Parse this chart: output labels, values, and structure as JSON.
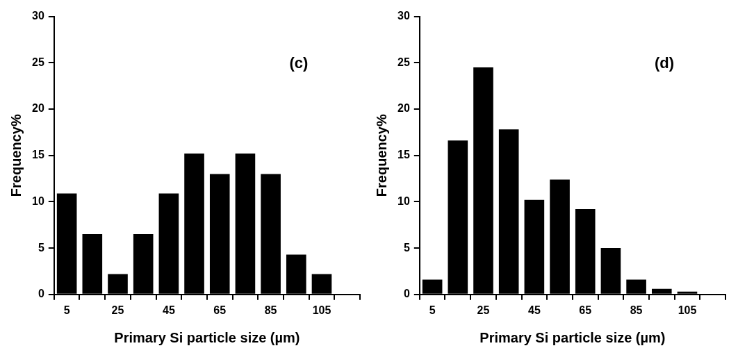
{
  "chart_data": [
    {
      "type": "bar",
      "categories": [
        "5",
        null,
        "25",
        null,
        "45",
        null,
        "65",
        null,
        "85",
        null,
        "105",
        null
      ],
      "values": [
        10.9,
        6.5,
        2.2,
        6.5,
        10.9,
        15.2,
        13.0,
        15.2,
        13.0,
        4.3,
        2.2,
        null
      ],
      "color": "#000000",
      "xlabel": "Primary Si particle size (µm)",
      "ylabel": "Frequency%",
      "ylim": [
        0,
        30
      ],
      "yticks": [
        0,
        5,
        10,
        15,
        20,
        25,
        30
      ],
      "grid": false,
      "legend": false,
      "annotations": [
        "(c)"
      ]
    },
    {
      "type": "bar",
      "categories": [
        "5",
        null,
        "25",
        null,
        "45",
        null,
        "65",
        null,
        "85",
        null,
        "105",
        null
      ],
      "values": [
        1.6,
        16.6,
        24.5,
        17.8,
        10.2,
        12.4,
        9.2,
        5.0,
        1.6,
        0.6,
        0.3,
        null
      ],
      "color": "#000000",
      "xlabel": "Primary Si particle size (µm)",
      "ylabel": "Frequency%",
      "ylim": [
        0,
        30
      ],
      "yticks": [
        0,
        5,
        10,
        15,
        20,
        25,
        30
      ],
      "grid": false,
      "legend": false,
      "annotations": [
        "(d)"
      ]
    }
  ]
}
